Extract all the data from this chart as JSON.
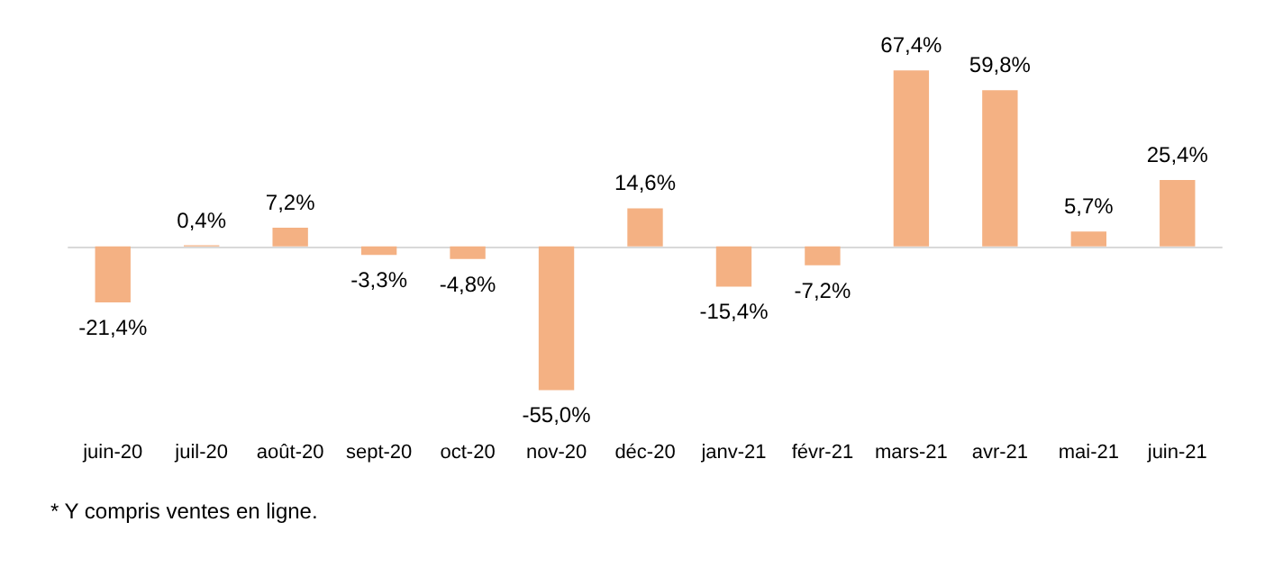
{
  "chart_data": {
    "type": "bar",
    "categories": [
      "juin-20",
      "juil-20",
      "août-20",
      "sept-20",
      "oct-20",
      "nov-20",
      "déc-20",
      "janv-21",
      "févr-21",
      "mars-21",
      "avr-21",
      "mai-21",
      "juin-21"
    ],
    "values": [
      -21.4,
      0.4,
      7.2,
      -3.3,
      -4.8,
      -55.0,
      14.6,
      -15.4,
      -7.2,
      67.4,
      59.8,
      5.7,
      25.4
    ],
    "value_labels": [
      "-21,4%",
      "0,4%",
      "7,2%",
      "-3,3%",
      "-4,8%",
      "-55,0%",
      "14,6%",
      "-15,4%",
      "-7,2%",
      "67,4%",
      "59,8%",
      "5,7%",
      "25,4%"
    ],
    "color": "#f4b183",
    "annotations": [
      "* Y compris ventes en ligne."
    ]
  }
}
